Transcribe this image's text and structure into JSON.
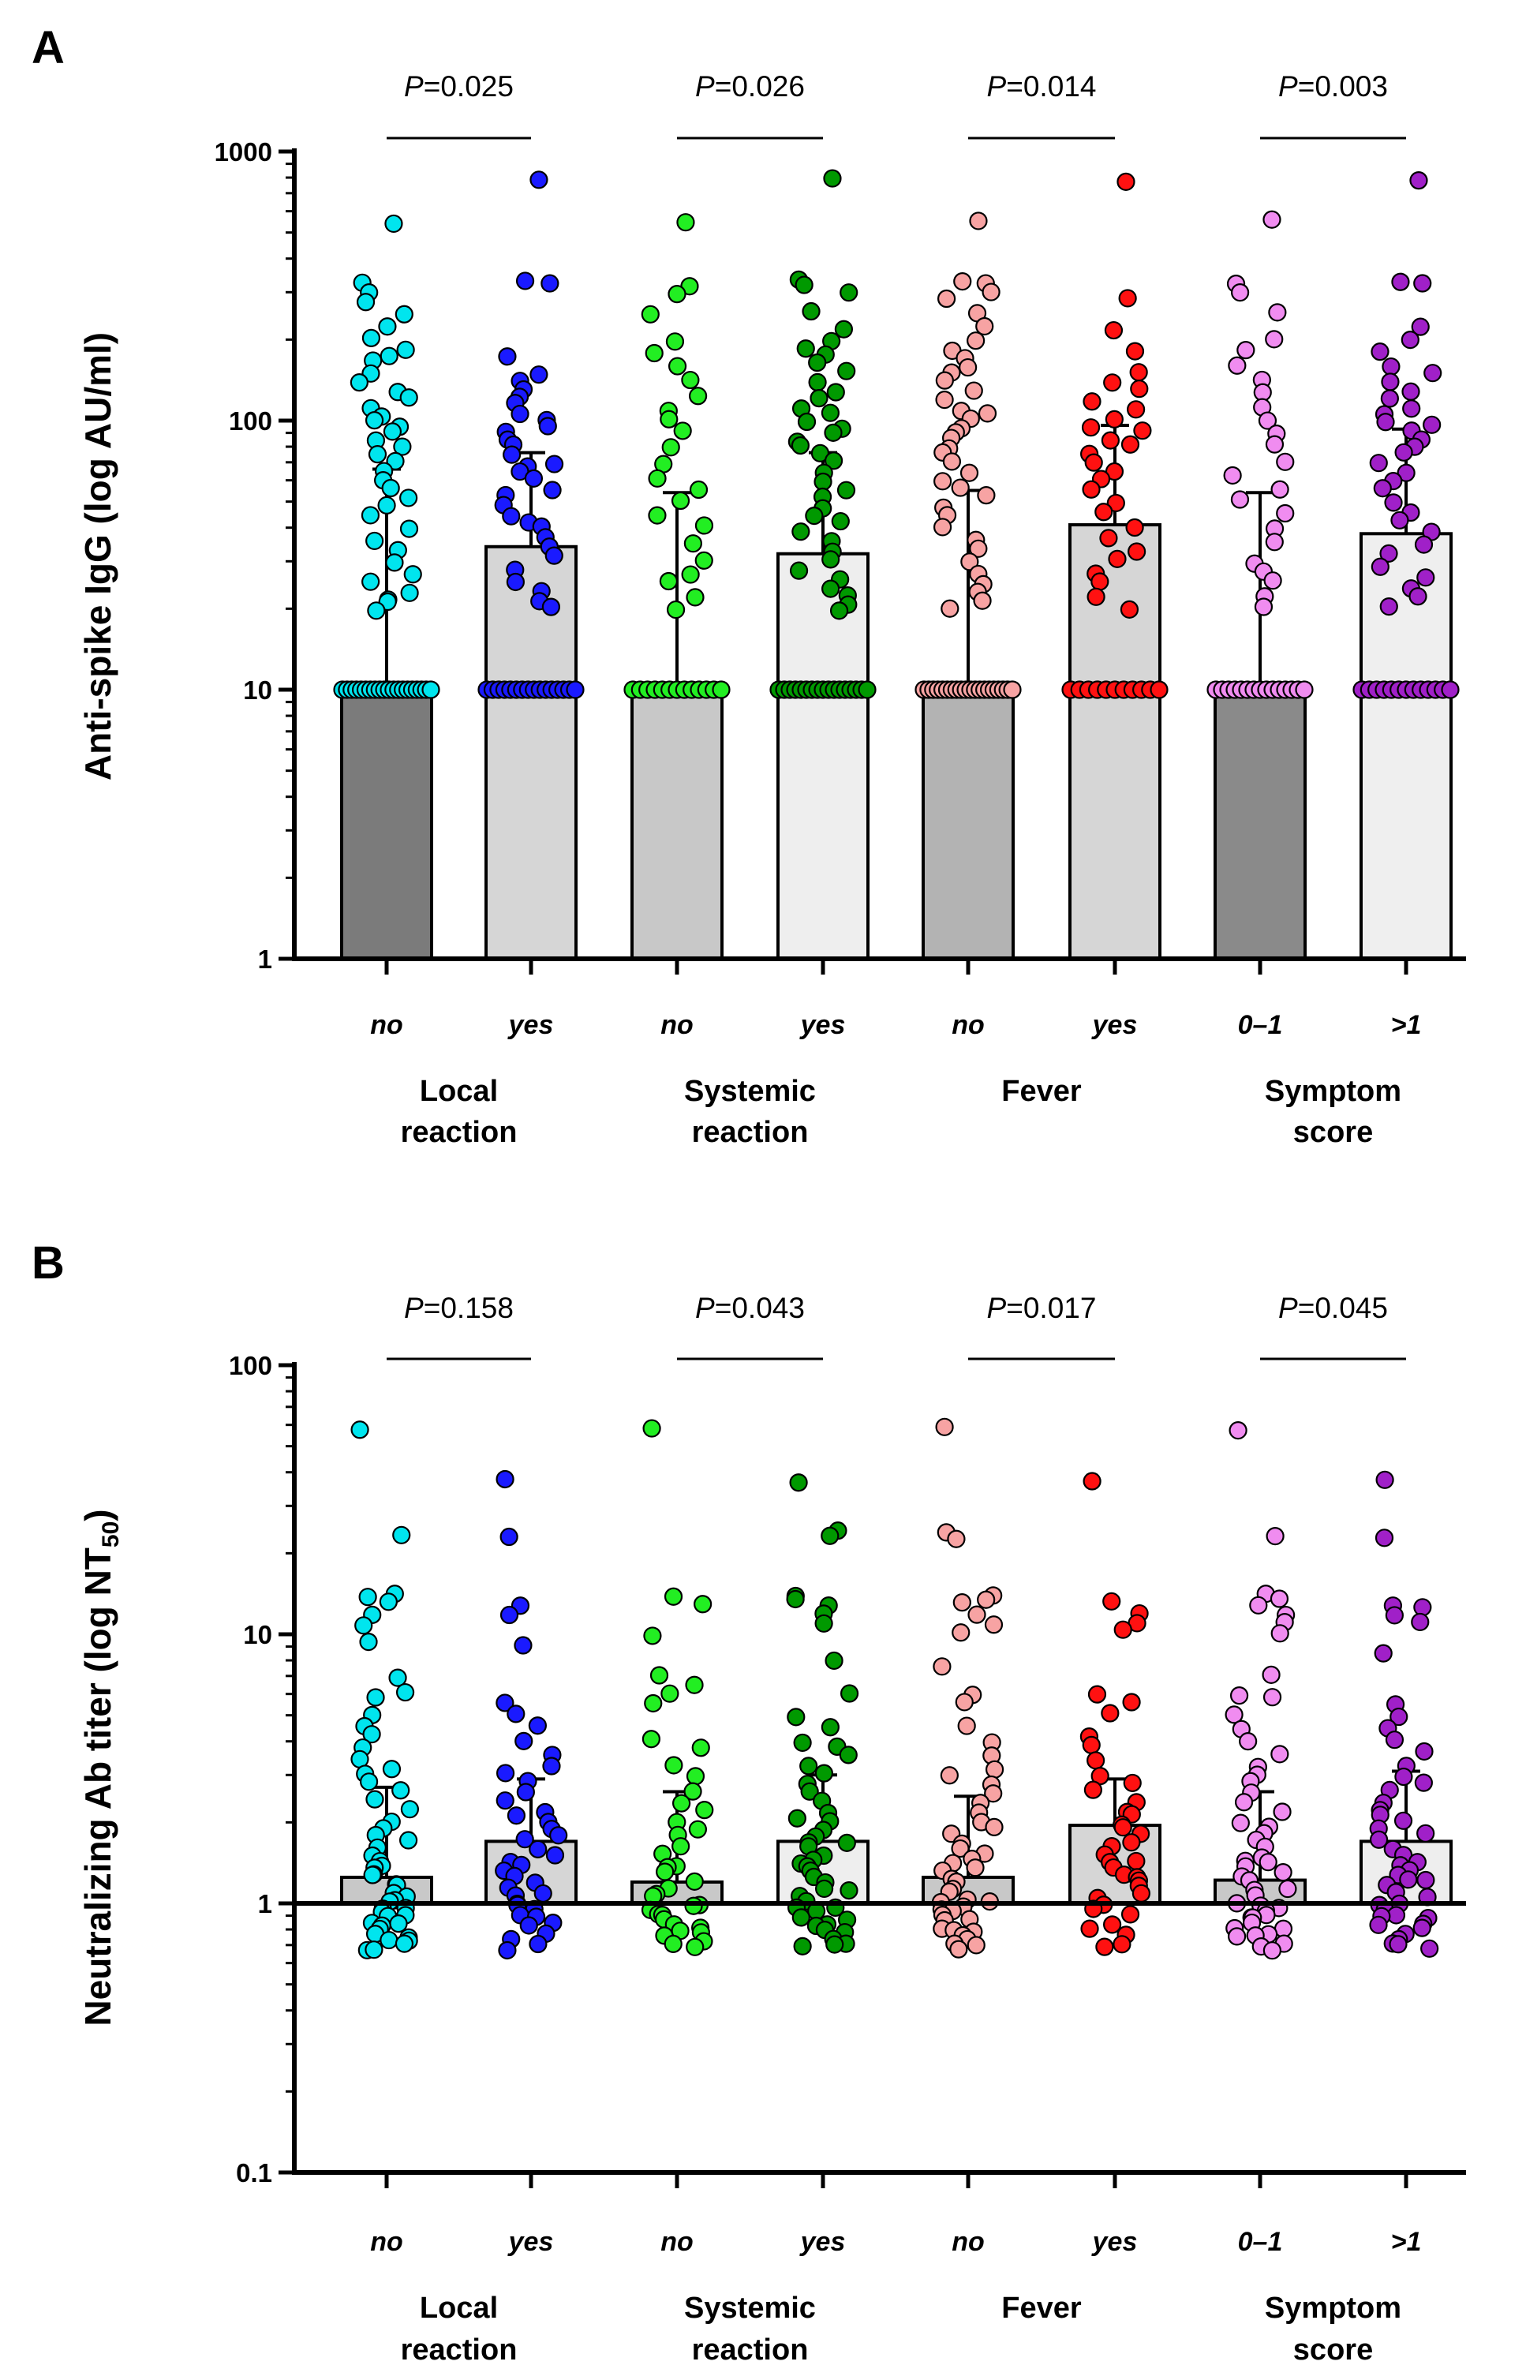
{
  "chart_data": [
    {
      "panel": "A",
      "type": "bar",
      "yscale": "log",
      "ylabel": "Anti-spike IgG (log AU/ml)",
      "ylim": [
        1,
        1000
      ],
      "yticks": [
        "1",
        "10",
        "100",
        "1000"
      ],
      "yticks_values": [
        1,
        10,
        100,
        1000
      ],
      "baseline": 1,
      "categories": [
        "no",
        "yes",
        "no",
        "yes",
        "no",
        "yes",
        "0–1",
        ">1"
      ],
      "groups": [
        {
          "line1": "Local",
          "line2": "reaction"
        },
        {
          "line1": "Systemic",
          "line2": "reaction"
        },
        {
          "line1": "Fever",
          "line2": ""
        },
        {
          "line1": "Symptom",
          "line2": "score"
        }
      ],
      "comparisons": [
        {
          "p_prefix": "P",
          "p_text": "=0.025"
        },
        {
          "p_prefix": "P",
          "p_text": "=0.026"
        },
        {
          "p_prefix": "P",
          "p_text": "=0.014"
        },
        {
          "p_prefix": "P",
          "p_text": "=0.003"
        }
      ],
      "bars": [
        {
          "value": 10,
          "error_upper": 66,
          "fill": "#7b7b7b",
          "point_color": "#00e5ee",
          "points": [
            550,
            320,
            300,
            280,
            250,
            220,
            200,
            185,
            175,
            165,
            150,
            140,
            130,
            120,
            110,
            105,
            100,
            95,
            90,
            85,
            80,
            75,
            70,
            65,
            60,
            56,
            52,
            48,
            44,
            40,
            36,
            33,
            30,
            27,
            25,
            23,
            22,
            21,
            20,
            10,
            10,
            10,
            10,
            10,
            10,
            10,
            10,
            10,
            10,
            10,
            10,
            10,
            10,
            10,
            10,
            10,
            10,
            10,
            10
          ]
        },
        {
          "value": 34,
          "error_upper": 76,
          "fill": "#d6d6d6",
          "point_color": "#1a1aff",
          "points": [
            780,
            330,
            320,
            175,
            150,
            140,
            130,
            125,
            115,
            108,
            100,
            95,
            90,
            85,
            80,
            75,
            70,
            68,
            65,
            60,
            55,
            52,
            48,
            45,
            42,
            40,
            37,
            34,
            31,
            28,
            25,
            23,
            21,
            20,
            10,
            10,
            10,
            10,
            10,
            10,
            10,
            10,
            10,
            10,
            10,
            10,
            10,
            10,
            10,
            10
          ]
        },
        {
          "value": 10,
          "error_upper": 54,
          "fill": "#c8c8c8",
          "point_color": "#22ee22",
          "points": [
            550,
            320,
            300,
            250,
            200,
            180,
            160,
            140,
            125,
            110,
            100,
            90,
            80,
            70,
            62,
            55,
            50,
            45,
            40,
            35,
            30,
            27,
            25,
            22,
            20,
            10,
            10,
            10,
            10,
            10,
            10,
            10,
            10,
            10,
            10,
            10,
            10,
            10
          ]
        },
        {
          "value": 32,
          "error_upper": 76,
          "fill": "#eeeeee",
          "point_color": "#009900",
          "points": [
            780,
            330,
            320,
            300,
            250,
            215,
            200,
            185,
            175,
            165,
            150,
            140,
            130,
            120,
            112,
            105,
            100,
            95,
            90,
            85,
            80,
            75,
            70,
            65,
            60,
            56,
            52,
            48,
            45,
            42,
            39,
            36,
            33,
            30,
            28,
            26,
            24,
            22,
            21,
            20,
            10,
            10,
            10,
            10,
            10,
            10,
            10,
            10,
            10,
            10,
            10,
            10,
            10,
            10,
            10,
            10,
            10
          ]
        },
        {
          "value": 10,
          "error_upper": 55,
          "fill": "#b3b3b3",
          "point_color": "#f7a3a3",
          "points": [
            550,
            330,
            320,
            300,
            280,
            250,
            220,
            200,
            185,
            170,
            160,
            150,
            140,
            130,
            120,
            110,
            105,
            100,
            95,
            90,
            85,
            80,
            75,
            70,
            65,
            60,
            56,
            52,
            48,
            44,
            40,
            36,
            33,
            30,
            27,
            25,
            23,
            21,
            20,
            10,
            10,
            10,
            10,
            10,
            10,
            10,
            10,
            10,
            10,
            10,
            10,
            10,
            10,
            10,
            10,
            10,
            10,
            10,
            10
          ]
        },
        {
          "value": 41,
          "error_upper": 96,
          "fill": "#d6d6d6",
          "point_color": "#ff1111",
          "points": [
            780,
            290,
            220,
            180,
            150,
            140,
            130,
            120,
            110,
            100,
            95,
            90,
            85,
            80,
            75,
            70,
            65,
            60,
            55,
            50,
            45,
            40,
            36,
            33,
            30,
            27,
            25,
            22,
            20,
            10,
            10,
            10,
            10,
            10,
            10,
            10,
            10,
            10,
            10,
            10
          ]
        },
        {
          "value": 10,
          "error_upper": 54,
          "fill": "#8a8a8a",
          "point_color": "#f08cf0",
          "points": [
            550,
            320,
            300,
            250,
            200,
            180,
            160,
            140,
            125,
            110,
            100,
            90,
            80,
            70,
            62,
            55,
            50,
            45,
            40,
            35,
            30,
            27,
            25,
            22,
            20,
            10,
            10,
            10,
            10,
            10,
            10,
            10,
            10,
            10,
            10,
            10,
            10,
            10,
            10,
            10
          ]
        },
        {
          "value": 38,
          "error_upper": 93,
          "fill": "#efefef",
          "point_color": "#a020c8",
          "points": [
            780,
            330,
            320,
            220,
            200,
            180,
            160,
            150,
            140,
            130,
            120,
            110,
            105,
            100,
            95,
            90,
            85,
            80,
            75,
            70,
            65,
            60,
            55,
            50,
            45,
            42,
            38,
            35,
            32,
            29,
            26,
            24,
            22,
            20,
            10,
            10,
            10,
            10,
            10,
            10,
            10,
            10,
            10,
            10,
            10,
            10,
            10
          ]
        }
      ]
    },
    {
      "panel": "B",
      "type": "bar",
      "yscale": "log",
      "ylabel": "Neutralizing Ab titer (log NT",
      "ylabel_sub": "50",
      "ylabel_end": ")",
      "ylim": [
        0.1,
        100
      ],
      "yticks": [
        "0.1",
        "1",
        "10",
        "100"
      ],
      "yticks_values": [
        0.1,
        1,
        10,
        100
      ],
      "baseline": 1,
      "categories": [
        "no",
        "yes",
        "no",
        "yes",
        "no",
        "yes",
        "0–1",
        ">1"
      ],
      "groups": [
        {
          "line1": "Local",
          "line2": "reaction"
        },
        {
          "line1": "Systemic",
          "line2": "reaction"
        },
        {
          "line1": "Fever",
          "line2": ""
        },
        {
          "line1": "Symptom",
          "line2": "score"
        }
      ],
      "comparisons": [
        {
          "p_prefix": "P",
          "p_text": "=0.158"
        },
        {
          "p_prefix": "P",
          "p_text": "=0.043"
        },
        {
          "p_prefix": "P",
          "p_text": "=0.017"
        },
        {
          "p_prefix": "P",
          "p_text": "=0.045"
        }
      ],
      "bars": [
        {
          "value": 1.25,
          "error_upper": 2.7,
          "fill": "#c8c8c8",
          "point_color": "#00e5ee",
          "points": [
            58,
            23,
            14,
            13.5,
            13,
            12,
            11,
            9.5,
            7,
            6.2,
            5.8,
            5,
            4.6,
            4.2,
            3.8,
            3.5,
            3.2,
            3,
            2.8,
            2.6,
            2.4,
            2.2,
            2,
            1.9,
            1.8,
            1.7,
            1.6,
            1.5,
            1.45,
            1.4,
            1.35,
            1.3,
            1.25,
            1.2,
            1.15,
            1.1,
            1.05,
            1.02,
            1,
            0.98,
            0.95,
            0.92,
            0.9,
            0.88,
            0.86,
            0.84,
            0.82,
            0.8,
            0.78,
            0.76,
            0.74,
            0.72,
            0.7,
            0.68,
            0.67
          ]
        },
        {
          "value": 1.7,
          "error_upper": 2.9,
          "fill": "#d6d6d6",
          "point_color": "#1a1aff",
          "points": [
            37,
            23,
            13,
            12,
            9,
            5.5,
            5,
            4.5,
            4,
            3.6,
            3.2,
            3,
            2.8,
            2.6,
            2.4,
            2.2,
            2.1,
            2,
            1.9,
            1.8,
            1.7,
            1.6,
            1.5,
            1.45,
            1.4,
            1.3,
            1.25,
            1.2,
            1.15,
            1.1,
            1.05,
            1,
            0.98,
            0.95,
            0.92,
            0.9,
            0.86,
            0.82,
            0.78,
            0.74,
            0.7,
            0.67
          ]
        },
        {
          "value": 1.2,
          "error_upper": 2.6,
          "fill": "#c8c8c8",
          "point_color": "#22ee22",
          "points": [
            58,
            14,
            13,
            10,
            7,
            6.5,
            6,
            5.5,
            4,
            3.8,
            3.2,
            3,
            2.6,
            2.4,
            2.2,
            2,
            1.9,
            1.8,
            1.6,
            1.5,
            1.4,
            1.35,
            1.3,
            1.2,
            1.15,
            1.1,
            1.05,
            1,
            0.98,
            0.95,
            0.92,
            0.9,
            0.88,
            0.85,
            0.82,
            0.8,
            0.78,
            0.75,
            0.72,
            0.7,
            0.68
          ]
        },
        {
          "value": 1.7,
          "error_upper": 3.0,
          "fill": "#eeeeee",
          "point_color": "#009900",
          "points": [
            37,
            24,
            23,
            14,
            13.5,
            13,
            12,
            11,
            8,
            6,
            5,
            4.5,
            4,
            3.8,
            3.5,
            3.2,
            3,
            2.8,
            2.6,
            2.4,
            2.2,
            2.1,
            2,
            1.9,
            1.8,
            1.7,
            1.65,
            1.6,
            1.5,
            1.45,
            1.4,
            1.35,
            1.3,
            1.25,
            1.2,
            1.15,
            1.1,
            1.05,
            1,
            0.98,
            0.95,
            0.92,
            0.9,
            0.88,
            0.85,
            0.82,
            0.8,
            0.78,
            0.75,
            0.72,
            0.7,
            0.68
          ]
        },
        {
          "value": 1.25,
          "error_upper": 2.5,
          "fill": "#c8c8c8",
          "point_color": "#f7a3a3",
          "points": [
            58,
            24,
            23,
            14,
            13.5,
            13,
            12,
            11,
            10,
            7.5,
            6,
            5.5,
            4.5,
            4,
            3.6,
            3.2,
            3,
            2.8,
            2.6,
            2.4,
            2.2,
            2,
            1.9,
            1.8,
            1.7,
            1.6,
            1.5,
            1.45,
            1.4,
            1.35,
            1.3,
            1.25,
            1.2,
            1.15,
            1.1,
            1.05,
            1.02,
            1,
            0.98,
            0.95,
            0.92,
            0.9,
            0.88,
            0.85,
            0.82,
            0.8,
            0.78,
            0.76,
            0.74,
            0.72,
            0.7,
            0.68
          ]
        },
        {
          "value": 1.95,
          "error_upper": 2.9,
          "fill": "#d6d6d6",
          "point_color": "#ff1111",
          "points": [
            37,
            13.5,
            12,
            11,
            10.5,
            6,
            5.5,
            5,
            4.2,
            3.8,
            3.4,
            3,
            2.8,
            2.6,
            2.4,
            2.2,
            2.1,
            2,
            1.9,
            1.8,
            1.7,
            1.6,
            1.5,
            1.45,
            1.4,
            1.35,
            1.3,
            1.25,
            1.2,
            1.15,
            1.1,
            1.05,
            1,
            0.95,
            0.9,
            0.85,
            0.8,
            0.75,
            0.7,
            0.68
          ]
        },
        {
          "value": 1.22,
          "error_upper": 2.6,
          "fill": "#c8c8c8",
          "point_color": "#f08cf0",
          "points": [
            58,
            23,
            14,
            13.5,
            13,
            12,
            11,
            10,
            7,
            6,
            5.8,
            5,
            4.5,
            4,
            3.6,
            3.2,
            3,
            2.8,
            2.6,
            2.4,
            2.2,
            2,
            1.9,
            1.8,
            1.7,
            1.6,
            1.5,
            1.45,
            1.4,
            1.35,
            1.3,
            1.25,
            1.2,
            1.15,
            1.1,
            1.05,
            1.02,
            1,
            0.98,
            0.95,
            0.92,
            0.9,
            0.88,
            0.85,
            0.82,
            0.8,
            0.78,
            0.76,
            0.74,
            0.72,
            0.7,
            0.68
          ]
        },
        {
          "value": 1.7,
          "error_upper": 3.1,
          "fill": "#eeeeee",
          "point_color": "#a020c8",
          "points": [
            37,
            23,
            13,
            12.5,
            12,
            11,
            8.5,
            5.5,
            5,
            4.5,
            4,
            3.6,
            3.2,
            3,
            2.8,
            2.6,
            2.4,
            2.2,
            2.1,
            2,
            1.9,
            1.8,
            1.7,
            1.6,
            1.5,
            1.45,
            1.4,
            1.35,
            1.3,
            1.25,
            1.2,
            1.15,
            1.1,
            1.05,
            1,
            0.98,
            0.95,
            0.92,
            0.9,
            0.88,
            0.85,
            0.82,
            0.8,
            0.78,
            0.75,
            0.72,
            0.7,
            0.68
          ]
        }
      ]
    }
  ]
}
